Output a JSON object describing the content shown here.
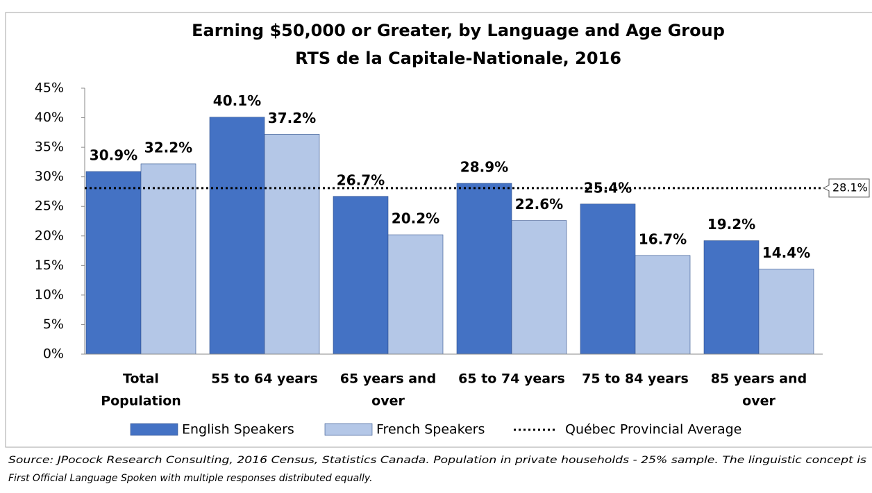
{
  "chart_data": {
    "type": "bar",
    "title": [
      "Earning $50,000 or Greater, by Language and Age Group",
      "RTS de la Capitale-Nationale, 2016"
    ],
    "categories": [
      [
        "Total",
        "Population"
      ],
      [
        "55 to 64 years"
      ],
      [
        "65 years and",
        "over"
      ],
      [
        "65 to 74 years"
      ],
      [
        "75 to 84 years"
      ],
      [
        "85 years and",
        "over"
      ]
    ],
    "series": [
      {
        "name": "English Speakers",
        "color": "#4472c4",
        "values": [
          30.9,
          40.1,
          26.7,
          28.9,
          25.4,
          19.2
        ],
        "value_labels": [
          "30.9%",
          "40.1%",
          "26.7%",
          "28.9%",
          "25.4%",
          "19.2%"
        ]
      },
      {
        "name": "French Speakers",
        "color": "#b4c7e7",
        "values": [
          32.2,
          37.2,
          20.2,
          22.6,
          16.7,
          14.4
        ],
        "value_labels": [
          "32.2%",
          "37.2%",
          "20.2%",
          "22.6%",
          "16.7%",
          "14.4%"
        ]
      }
    ],
    "reference_line": {
      "name": "Québec Provincial Average",
      "value": 28.1,
      "value_label": "28.1%"
    },
    "ylim": [
      0,
      45
    ],
    "yticks": [
      {
        "value": 0,
        "label": "0%"
      },
      {
        "value": 5,
        "label": "5%"
      },
      {
        "value": 10,
        "label": "10%"
      },
      {
        "value": 15,
        "label": "15%"
      },
      {
        "value": 20,
        "label": "20%"
      },
      {
        "value": 25,
        "label": "25%"
      },
      {
        "value": 30,
        "label": "30%"
      },
      {
        "value": 35,
        "label": "35%"
      },
      {
        "value": 40,
        "label": "40%"
      },
      {
        "value": 45,
        "label": "45%"
      }
    ],
    "source": [
      "Source: JPocock Research Consulting, 2016 Census, Statistics Canada. Population in private households - 25% sample. The linguistic concept is",
      "First Official Language Spoken with multiple responses distributed equally."
    ]
  }
}
